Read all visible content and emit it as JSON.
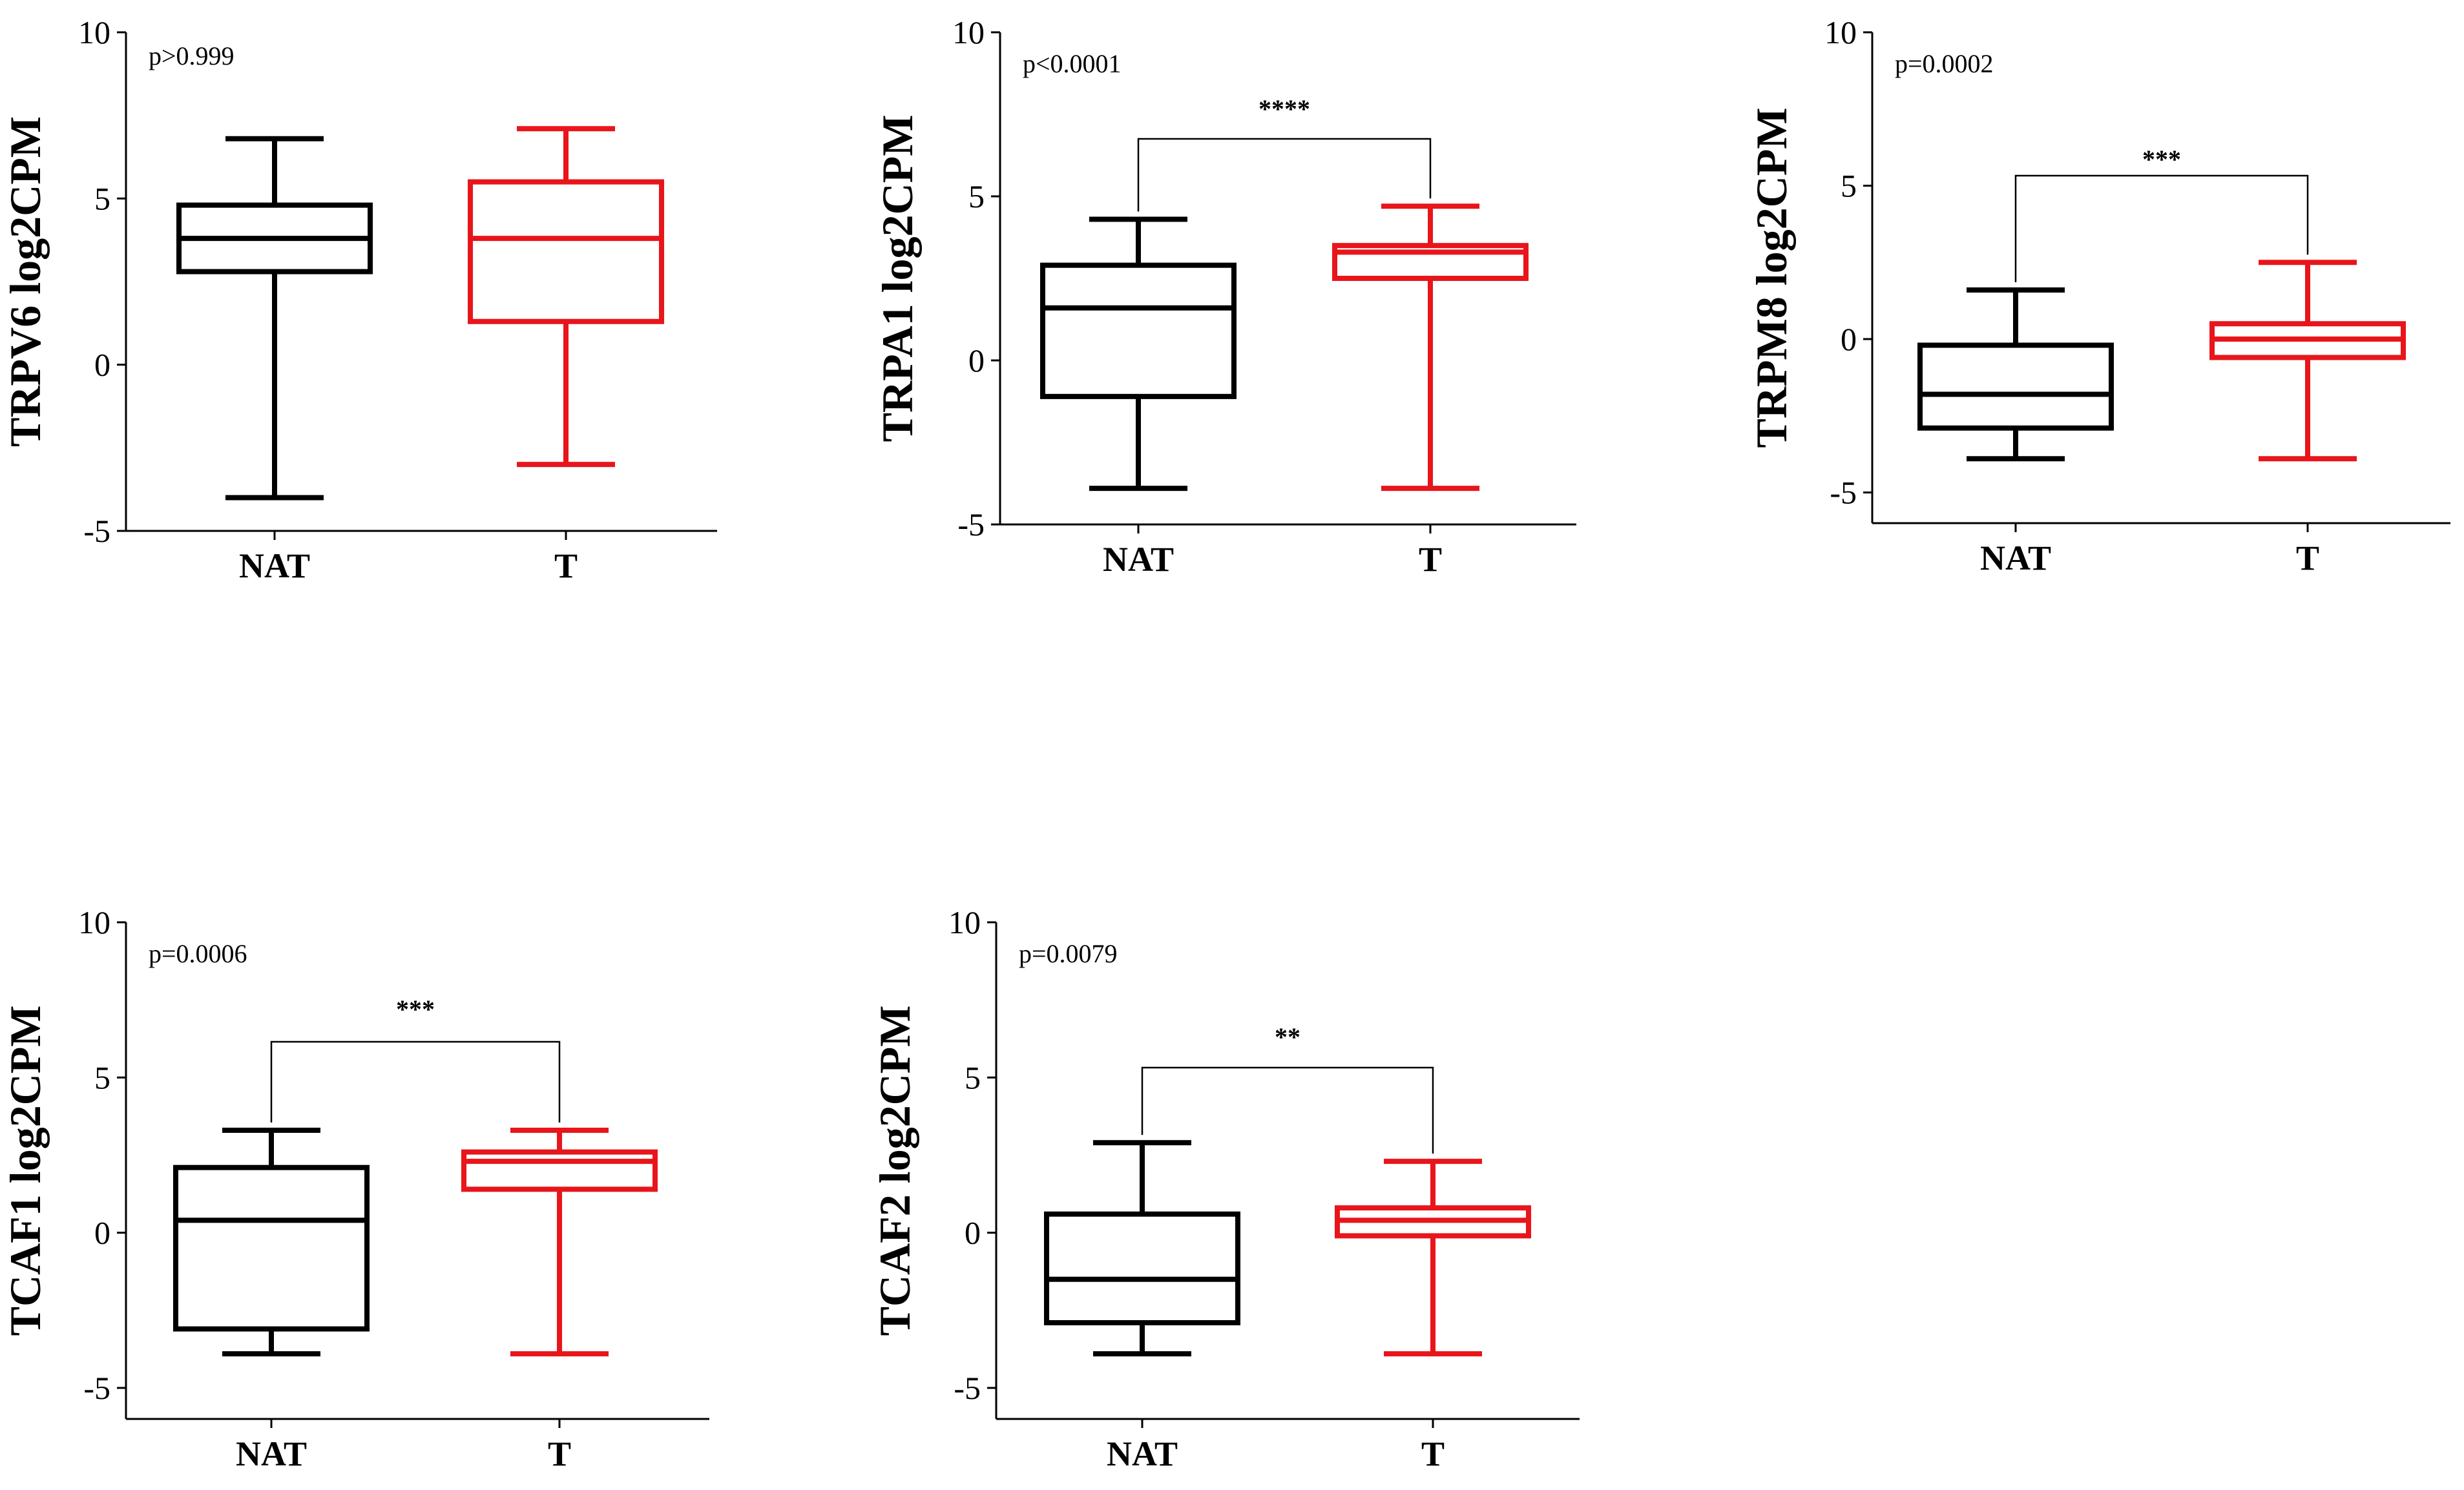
{
  "figure_title": "",
  "chart_data": [
    {
      "type": "boxplot",
      "title": "",
      "ylabel": "TRPV6 log2CPM",
      "xlabel": "",
      "ylim": [
        -5,
        10
      ],
      "yticks": [
        "-5",
        "0",
        "5",
        "10"
      ],
      "categories": [
        "NAT",
        "T"
      ],
      "colors": [
        "#000000",
        "#e8151b"
      ],
      "boxes": [
        {
          "min": -4.0,
          "q1": 2.8,
          "median": 3.8,
          "q3": 4.8,
          "max": 6.8
        },
        {
          "min": -3.0,
          "q1": 1.3,
          "median": 3.8,
          "q3": 5.5,
          "max": 7.1
        }
      ],
      "p_value": "p>0.999",
      "significance": ""
    },
    {
      "type": "boxplot",
      "title": "",
      "ylabel": "TRPA1 log2CPM",
      "xlabel": "",
      "ylim": [
        -5,
        10
      ],
      "yticks": [
        "-5",
        "0",
        "5",
        "10"
      ],
      "categories": [
        "NAT",
        "T"
      ],
      "colors": [
        "#000000",
        "#e8151b"
      ],
      "boxes": [
        {
          "min": -3.9,
          "q1": -1.1,
          "median": 1.6,
          "q3": 2.9,
          "max": 4.3
        },
        {
          "min": -3.9,
          "q1": 2.5,
          "median": 3.3,
          "q3": 3.5,
          "max": 4.7
        }
      ],
      "p_value": "p<0.0001",
      "significance": "****"
    },
    {
      "type": "boxplot",
      "title": "",
      "ylabel": "TRPM8 log2CPM",
      "xlabel": "",
      "ylim": [
        -6,
        10
      ],
      "yticks": [
        "-5",
        "0",
        "5",
        "10"
      ],
      "categories": [
        "NAT",
        "T"
      ],
      "colors": [
        "#000000",
        "#e8151b"
      ],
      "boxes": [
        {
          "min": -3.9,
          "q1": -2.9,
          "median": -1.8,
          "q3": -0.2,
          "max": 1.6
        },
        {
          "min": -3.9,
          "q1": -0.6,
          "median": 0.0,
          "q3": 0.5,
          "max": 2.5
        }
      ],
      "p_value": "p=0.0002",
      "significance": "***"
    },
    {
      "type": "boxplot",
      "title": "",
      "ylabel": "TCAF1 log2CPM",
      "xlabel": "",
      "ylim": [
        -6,
        10
      ],
      "yticks": [
        "-5",
        "0",
        "5",
        "10"
      ],
      "categories": [
        "NAT",
        "T"
      ],
      "colors": [
        "#000000",
        "#e8151b"
      ],
      "boxes": [
        {
          "min": -3.9,
          "q1": -3.1,
          "median": 0.4,
          "q3": 2.1,
          "max": 3.3
        },
        {
          "min": -3.9,
          "q1": 1.4,
          "median": 2.3,
          "q3": 2.6,
          "max": 3.3
        }
      ],
      "p_value": "p=0.0006",
      "significance": "***"
    },
    {
      "type": "boxplot",
      "title": "",
      "ylabel": "TCAF2 log2CPM",
      "xlabel": "",
      "ylim": [
        -6,
        10
      ],
      "yticks": [
        "-5",
        "0",
        "5",
        "10"
      ],
      "categories": [
        "NAT",
        "T"
      ],
      "colors": [
        "#000000",
        "#e8151b"
      ],
      "boxes": [
        {
          "min": -3.9,
          "q1": -2.9,
          "median": -1.5,
          "q3": 0.6,
          "max": 2.9
        },
        {
          "min": -3.9,
          "q1": -0.1,
          "median": 0.4,
          "q3": 0.8,
          "max": 2.3
        }
      ],
      "p_value": "p=0.0079",
      "significance": "**"
    }
  ]
}
